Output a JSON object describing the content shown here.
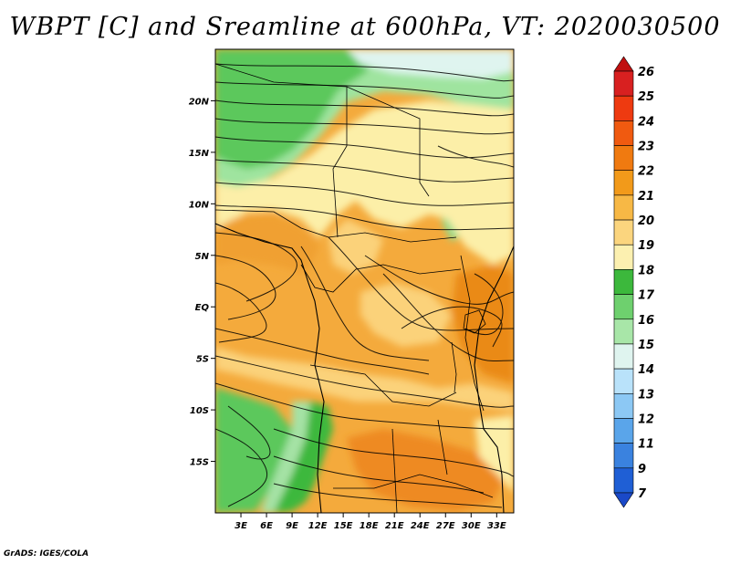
{
  "title": "WBPT [C] and Sreamline at 600hPa, VT: 2020030500",
  "footer": "GrADS: IGES/COLA",
  "map": {
    "lon_range": [
      0,
      35
    ],
    "lat_range": [
      -20,
      25
    ],
    "lon_ticks": [
      {
        "label": "3E",
        "value": 3
      },
      {
        "label": "6E",
        "value": 6
      },
      {
        "label": "9E",
        "value": 9
      },
      {
        "label": "12E",
        "value": 12
      },
      {
        "label": "15E",
        "value": 15
      },
      {
        "label": "18E",
        "value": 18
      },
      {
        "label": "21E",
        "value": 21
      },
      {
        "label": "24E",
        "value": 24
      },
      {
        "label": "27E",
        "value": 27
      },
      {
        "label": "30E",
        "value": 30
      },
      {
        "label": "33E",
        "value": 33
      }
    ],
    "lat_ticks": [
      {
        "label": "20N",
        "value": 20
      },
      {
        "label": "15N",
        "value": 15
      },
      {
        "label": "10N",
        "value": 10
      },
      {
        "label": "5N",
        "value": 5
      },
      {
        "label": "EQ",
        "value": 0
      },
      {
        "label": "5S",
        "value": -5
      },
      {
        "label": "10S",
        "value": -10
      },
      {
        "label": "15S",
        "value": -15
      }
    ]
  },
  "colorbar": {
    "levels": [
      "26",
      "25",
      "24",
      "23",
      "22",
      "21",
      "20",
      "19",
      "18",
      "17",
      "16",
      "15",
      "14",
      "13",
      "12",
      "11",
      "9",
      "7"
    ],
    "colors": [
      "#c01010",
      "#d82020",
      "#ee3a10",
      "#f05a10",
      "#f07a10",
      "#f29a1a",
      "#f7b845",
      "#fbd57e",
      "#fcf0b0",
      "#3cb83c",
      "#6ed06e",
      "#a8e6a8",
      "#dff4ef",
      "#b9e2fa",
      "#8cc8f4",
      "#5aa5ea",
      "#3a82df",
      "#1f5fd5",
      "#1a49c8"
    ]
  }
}
